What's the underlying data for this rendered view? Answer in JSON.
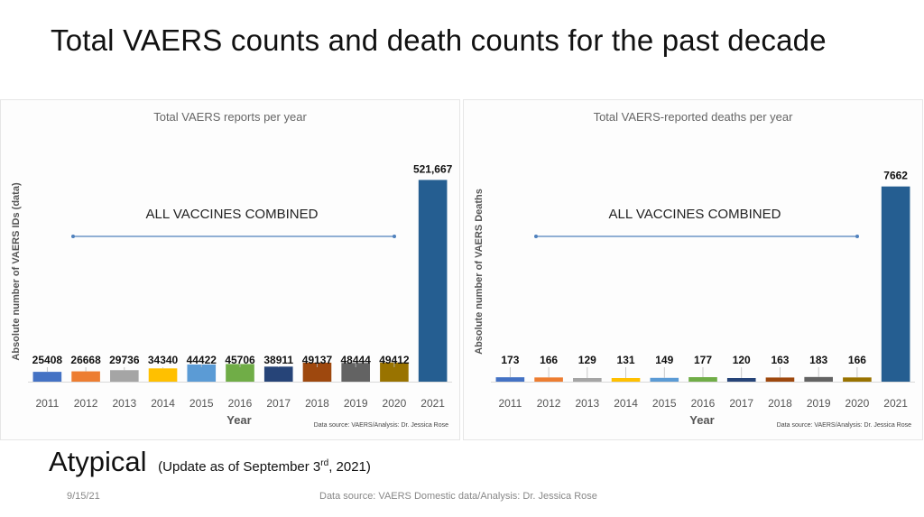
{
  "slide": {
    "title": "Total VAERS counts and death counts for the past decade",
    "atypical": "Atypical",
    "update_prefix": "(Update as of September 3",
    "update_sup": "rd",
    "update_suffix": ", 2021)",
    "date": "9/15/21",
    "source": "Data source: VAERS Domestic data/Analysis: Dr. Jessica Rose"
  },
  "chart_data": [
    {
      "type": "bar",
      "title": "Total VAERS reports per year",
      "xlabel": "Year",
      "ylabel": "Absolute number of VAERS IDs (data)",
      "categories": [
        "2011",
        "2012",
        "2013",
        "2014",
        "2015",
        "2016",
        "2017",
        "2018",
        "2019",
        "2020",
        "2021"
      ],
      "values": [
        25408,
        26668,
        29736,
        34340,
        44422,
        45706,
        38911,
        49137,
        48444,
        49412,
        521667
      ],
      "data_labels": [
        "25408",
        "26668",
        "29736",
        "34340",
        "44422",
        "45706",
        "38911",
        "49137",
        "48444",
        "49412",
        "521,667"
      ],
      "colors": [
        "#4472c4",
        "#ed7d31",
        "#a5a5a5",
        "#ffc000",
        "#5b9bd5",
        "#70ad47",
        "#264478",
        "#9e480e",
        "#636363",
        "#997300",
        "#255e91"
      ],
      "ylim": [
        0,
        560000
      ],
      "annotation": "ALL VACCINES COMBINED",
      "source": "Data source: VAERS/Analysis: Dr. Jessica Rose",
      "grid": false,
      "legend": "none"
    },
    {
      "type": "bar",
      "title": "Total VAERS-reported deaths per year",
      "xlabel": "Year",
      "ylabel": "Absolute number of VAERS Deaths",
      "categories": [
        "2011",
        "2012",
        "2013",
        "2014",
        "2015",
        "2016",
        "2017",
        "2018",
        "2019",
        "2020",
        "2021"
      ],
      "values": [
        173,
        166,
        129,
        131,
        149,
        177,
        120,
        163,
        183,
        166,
        7662
      ],
      "data_labels": [
        "173",
        "166",
        "129",
        "131",
        "149",
        "177",
        "120",
        "163",
        "183",
        "166",
        "7662"
      ],
      "colors": [
        "#4472c4",
        "#ed7d31",
        "#a5a5a5",
        "#ffc000",
        "#5b9bd5",
        "#70ad47",
        "#264478",
        "#9e480e",
        "#636363",
        "#997300",
        "#255e91"
      ],
      "ylim": [
        0,
        8500
      ],
      "annotation": "ALL VACCINES COMBINED",
      "source": "Data source: VAERS/Analysis: Dr. Jessica Rose",
      "grid": false,
      "legend": "none"
    }
  ]
}
